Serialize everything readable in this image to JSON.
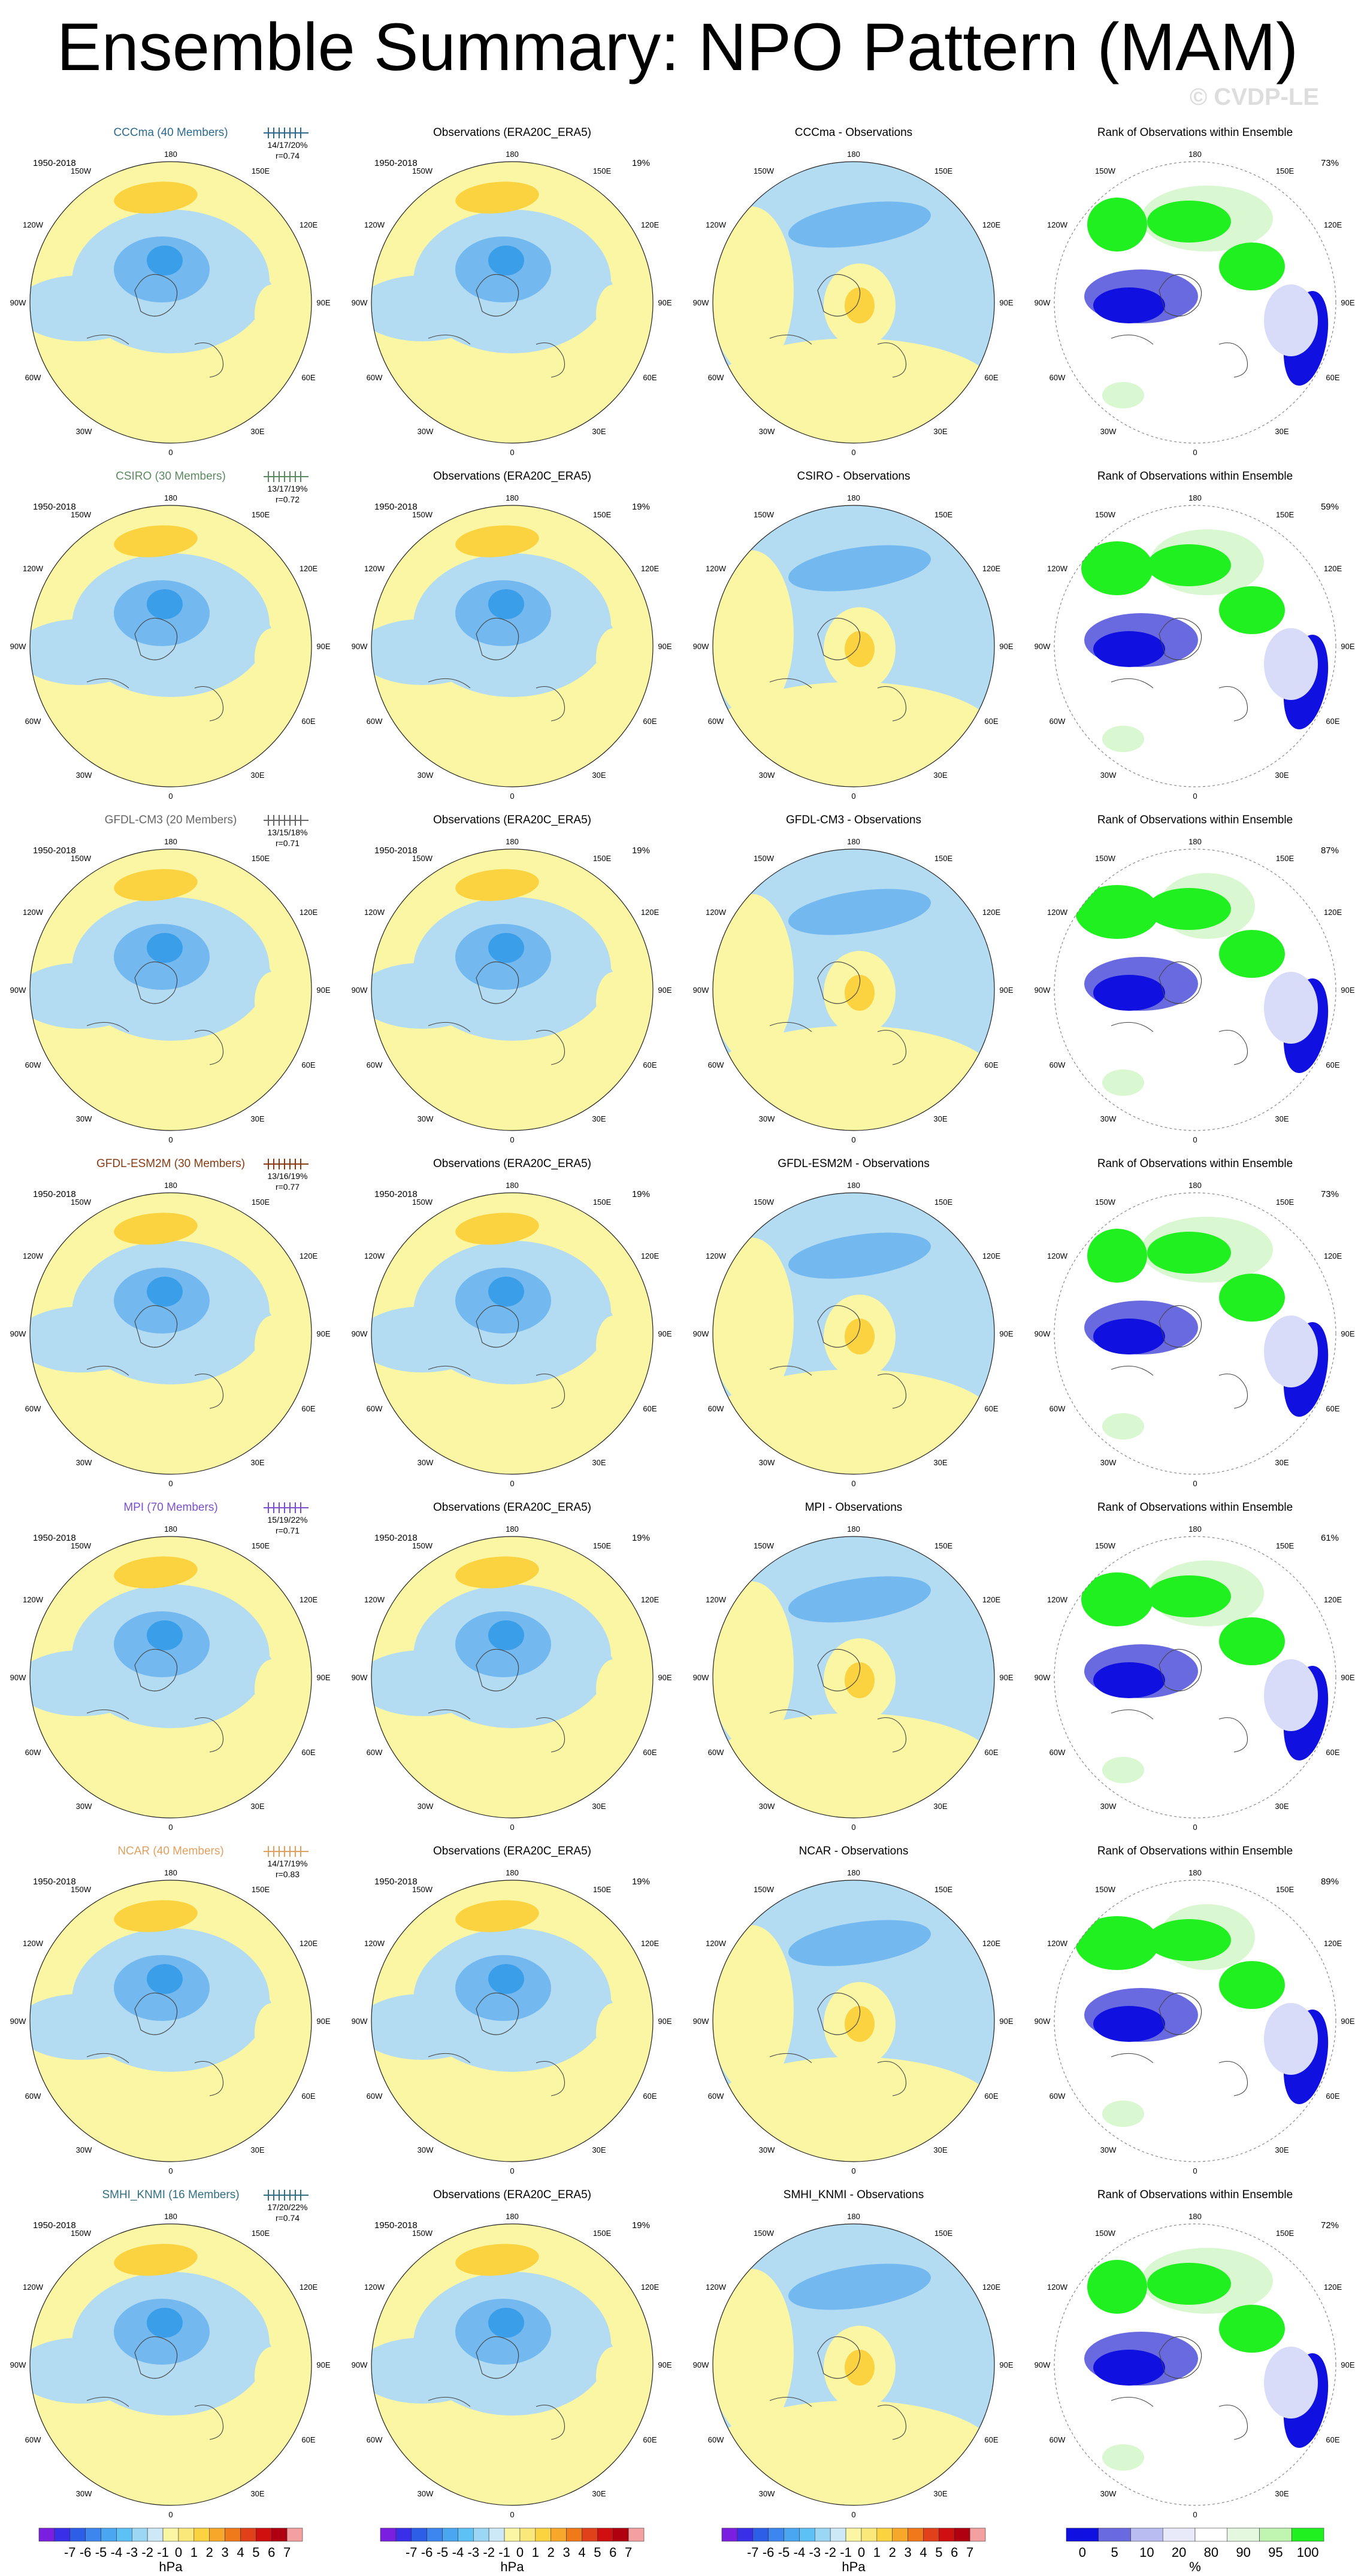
{
  "title": "Ensemble Summary: NPO Pattern (MAM)",
  "copyright": "© CVDP-LE",
  "period": "1950-2018",
  "obs_title": "Observations (ERA20C_ERA5)",
  "obs_pct": "19%",
  "rank_title": "Rank of Observations within Ensemble",
  "lon_labels": {
    "top": "180",
    "tl": "150W",
    "tr": "150E",
    "ul": "120W",
    "ur": "120E",
    "ml": "90W",
    "mr": "90E",
    "ll": "60W",
    "lr": "60E",
    "bl": "30W",
    "br": "30E",
    "bottom": "0"
  },
  "colors": {
    "yellow": "#fbf6a3",
    "gold": "#fbd341",
    "lightblue": "#b3dcf2",
    "blue": "#73b8ee",
    "deepblue": "#3a9fe8",
    "rankgreen": "#20f020",
    "rankpale": "#d9f7d0",
    "rankblue": "#1010e0",
    "rankmid": "#6a6ae0",
    "ranklight": "#d8dcf8"
  },
  "rows": [
    {
      "model": "CCCma (40 Members)",
      "color": "#2b6a8e",
      "stats": "14/17/20%",
      "r": "r=0.74",
      "diff": "CCCma - Observations",
      "rank_pct": "73%"
    },
    {
      "model": "CSIRO (30 Members)",
      "color": "#5b8a60",
      "stats": "13/17/19%",
      "r": "r=0.72",
      "diff": "CSIRO - Observations",
      "rank_pct": "59%"
    },
    {
      "model": "GFDL-CM3 (20 Members)",
      "color": "#666666",
      "stats": "13/15/18%",
      "r": "r=0.71",
      "diff": "GFDL-CM3 - Observations",
      "rank_pct": "87%"
    },
    {
      "model": "GFDL-ESM2M (30 Members)",
      "color": "#8a3a10",
      "stats": "13/16/19%",
      "r": "r=0.77",
      "diff": "GFDL-ESM2M - Observations",
      "rank_pct": "73%"
    },
    {
      "model": "MPI (70 Members)",
      "color": "#7a4fd0",
      "stats": "15/19/22%",
      "r": "r=0.71",
      "diff": "MPI - Observations",
      "rank_pct": "61%"
    },
    {
      "model": "NCAR (40 Members)",
      "color": "#e0a060",
      "stats": "14/17/19%",
      "r": "r=0.83",
      "diff": "NCAR - Observations",
      "rank_pct": "89%"
    },
    {
      "model": "SMHI_KNMI (16 Members)",
      "color": "#2f6f82",
      "stats": "17/20/22%",
      "r": "r=0.74",
      "diff": "SMHI_KNMI - Observations",
      "rank_pct": "72%"
    }
  ],
  "colorbar": {
    "hpa_labels": [
      "-7",
      "-6",
      "-5",
      "-4",
      "-3",
      "-2",
      "-1",
      "0",
      "1",
      "2",
      "3",
      "4",
      "5",
      "6",
      "7"
    ],
    "hpa_unit": "hPa",
    "hpa_colors": [
      "#7a1fe0",
      "#3a2fe8",
      "#2d5ee8",
      "#3d86f0",
      "#4aa6f0",
      "#5ec1f5",
      "#9cd6f5",
      "#cde8f7",
      "#fbf6a3",
      "#fbe87a",
      "#fbd341",
      "#f7a72a",
      "#f07a1a",
      "#e0401a",
      "#d01010",
      "#b00010",
      "#f5a0a0"
    ],
    "rank_labels": [
      "0",
      "5",
      "10",
      "20",
      "80",
      "90",
      "95",
      "100"
    ],
    "rank_unit": "%",
    "rank_colors": [
      "#1010e0",
      "#6a6ae0",
      "#b8bcf0",
      "#e8eafa",
      "#ffffff",
      "#e4f8e0",
      "#bff5b0",
      "#20f020"
    ]
  }
}
